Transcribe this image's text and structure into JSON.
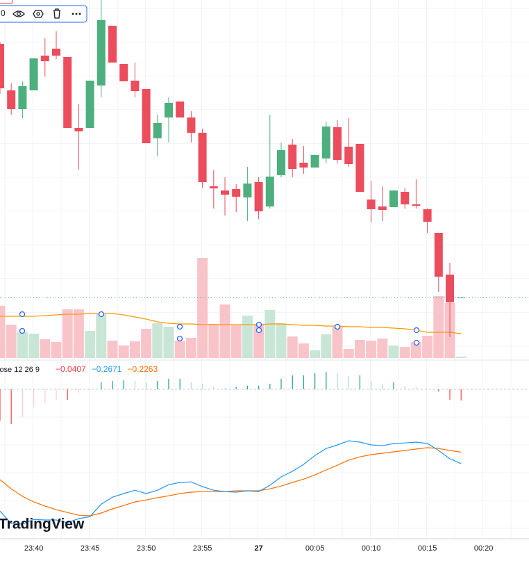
{
  "chart_data": {
    "type": "candlestick",
    "categories": [
      null,
      null,
      null,
      "23:40",
      null,
      null,
      null,
      null,
      "23:45",
      null,
      null,
      null,
      null,
      "23:50",
      null,
      null,
      null,
      null,
      "23:55",
      null,
      null,
      null,
      null,
      "27",
      null,
      null,
      null,
      null,
      "00:05",
      null,
      null,
      null,
      null,
      "00:10",
      null,
      null,
      null,
      null,
      "00:15",
      null,
      null,
      null,
      null,
      "00:20",
      null
    ],
    "open": [
      437,
      370,
      343,
      370,
      420,
      430,
      418,
      316,
      316,
      377,
      463,
      408,
      384,
      372,
      301,
      331,
      354,
      331,
      309,
      232,
      226,
      228,
      216,
      238,
      203,
      248,
      292,
      266,
      259,
      272,
      317,
      289,
      293,
      213,
      203,
      202,
      224,
      206,
      199,
      165,
      105,
      72,
      null,
      null,
      null
    ],
    "high": [
      440,
      380,
      383,
      416,
      445,
      455,
      418,
      350,
      384,
      500,
      463,
      408,
      410,
      372,
      335,
      360,
      354,
      340,
      315,
      255,
      245,
      235,
      260,
      245,
      335,
      295,
      300,
      290,
      277,
      325,
      327,
      330,
      293,
      240,
      232,
      226,
      230,
      242,
      200,
      165,
      122,
      72,
      null,
      null,
      null
    ],
    "low": [
      365,
      335,
      330,
      370,
      390,
      415,
      316,
      256,
      316,
      360,
      410,
      383,
      360,
      294,
      275,
      295,
      331,
      295,
      230,
      200,
      190,
      195,
      182,
      185,
      200,
      245,
      245,
      250,
      259,
      265,
      265,
      260,
      224,
      180,
      182,
      202,
      200,
      200,
      165,
      80,
      15,
      72,
      null,
      null,
      null
    ],
    "close": [
      373,
      343,
      376,
      416,
      412,
      420,
      316,
      311,
      384,
      471,
      410,
      383,
      369,
      294,
      323,
      352,
      331,
      309,
      238,
      229,
      220,
      217,
      236,
      196,
      246,
      284,
      257,
      259,
      277,
      318,
      270,
      264,
      224,
      199,
      198,
      226,
      206,
      204,
      181,
      102,
      65,
      72,
      null,
      null,
      null
    ],
    "ylim": [
      -15,
      500
    ],
    "up_color": "#4caf7d",
    "down_color": "#eb4d5c",
    "volume": {
      "values": [
        75,
        48,
        37,
        35,
        27,
        23,
        70,
        70,
        39,
        63,
        25,
        18,
        24,
        42,
        50,
        45,
        25,
        29,
        144,
        49,
        77,
        47,
        61,
        48,
        69,
        50,
        31,
        21,
        11,
        34,
        45,
        13,
        26,
        25,
        28,
        18,
        16,
        23,
        32,
        89,
        79,
        2,
        null,
        null,
        null
      ],
      "ma": [
        60,
        60,
        60,
        60,
        61,
        62,
        63,
        63,
        64,
        64,
        64,
        62,
        59,
        56,
        52,
        50,
        49,
        49,
        48,
        48,
        48,
        48,
        48,
        48,
        49,
        49,
        48,
        47,
        47,
        46,
        46,
        45,
        45,
        44,
        44,
        43,
        42,
        40,
        37,
        37,
        37,
        35,
        null,
        null,
        null
      ],
      "ylim": [
        0,
        515
      ],
      "up_color": "#c8e6d6",
      "down_color": "#f8c4ca",
      "ma_color": "#ff9800"
    },
    "macd": {
      "label": "lose 12 26 9",
      "readouts": [
        {
          "value": -0.0407,
          "label": "−0.0407",
          "color": "#f23645"
        },
        {
          "value": -0.2671,
          "label": "−0.2671",
          "color": "#2196f3"
        },
        {
          "value": -0.2263,
          "label": "−0.2263",
          "color": "#ff6d00"
        }
      ],
      "hist": [
        -0.113,
        -0.125,
        -0.1,
        -0.063,
        -0.05,
        -0.038,
        -0.038,
        -0.013,
        -0.003,
        0.025,
        0.03,
        0.033,
        0.03,
        0.025,
        0.03,
        0.038,
        0.038,
        0.025,
        0.02,
        0.01,
        0.005,
        0.008,
        0.013,
        0.013,
        0.02,
        0.038,
        0.05,
        0.05,
        0.058,
        0.063,
        0.058,
        0.048,
        0.05,
        0.03,
        0.018,
        0.025,
        0.013,
        0.008,
        0,
        -0.008,
        -0.038,
        -0.0407,
        null,
        null,
        null
      ],
      "macd": [
        -0.438,
        -0.483,
        -0.485,
        -0.468,
        -0.47,
        -0.47,
        -0.48,
        -0.465,
        -0.458,
        -0.413,
        -0.388,
        -0.375,
        -0.363,
        -0.375,
        -0.363,
        -0.343,
        -0.335,
        -0.333,
        -0.35,
        -0.363,
        -0.368,
        -0.37,
        -0.365,
        -0.368,
        -0.345,
        -0.315,
        -0.295,
        -0.27,
        -0.238,
        -0.213,
        -0.2,
        -0.185,
        -0.19,
        -0.2,
        -0.203,
        -0.195,
        -0.193,
        -0.19,
        -0.195,
        -0.22,
        -0.25,
        -0.2671,
        null,
        null,
        null
      ],
      "signal": [
        -0.325,
        -0.358,
        -0.385,
        -0.405,
        -0.42,
        -0.433,
        -0.443,
        -0.453,
        -0.455,
        -0.445,
        -0.43,
        -0.418,
        -0.405,
        -0.398,
        -0.39,
        -0.383,
        -0.375,
        -0.37,
        -0.368,
        -0.368,
        -0.368,
        -0.365,
        -0.365,
        -0.365,
        -0.358,
        -0.348,
        -0.335,
        -0.323,
        -0.308,
        -0.29,
        -0.273,
        -0.255,
        -0.243,
        -0.235,
        -0.23,
        -0.225,
        -0.22,
        -0.215,
        -0.21,
        -0.213,
        -0.22,
        -0.2263,
        null,
        null,
        null
      ],
      "ylim": [
        -0.5375,
        0.095
      ],
      "macd_color": "#2196f3",
      "signal_color": "#ff6d00"
    },
    "toolbar_text": "0",
    "watermark": "TradingView"
  }
}
